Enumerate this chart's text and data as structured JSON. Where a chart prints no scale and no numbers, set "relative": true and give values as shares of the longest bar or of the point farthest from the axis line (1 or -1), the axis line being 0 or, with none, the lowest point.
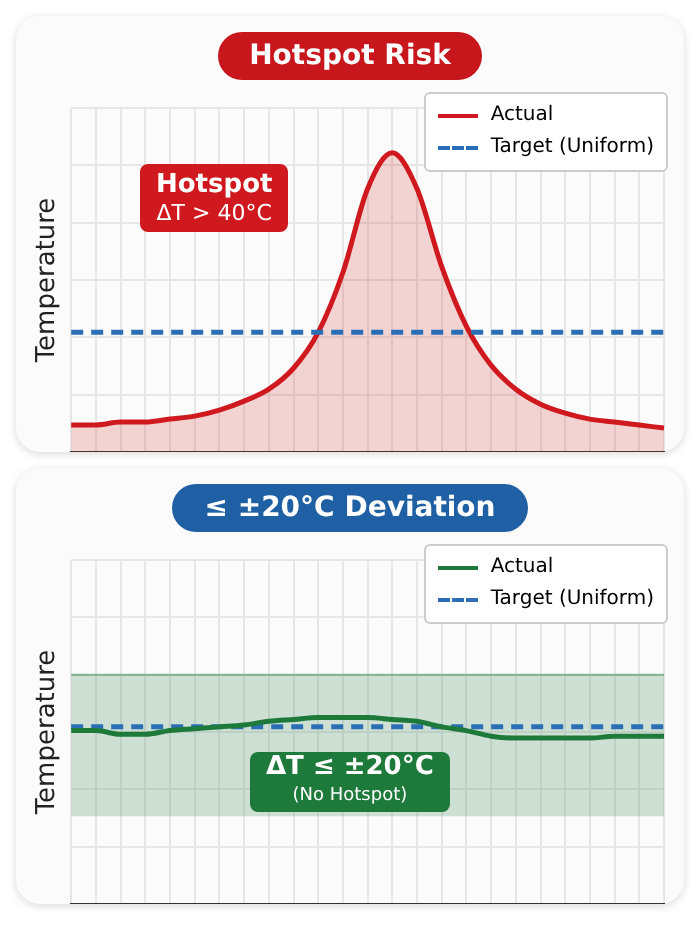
{
  "chart_data": [
    {
      "type": "line",
      "title": "Hotspot Risk",
      "ylabel": "Temperature",
      "relative": true,
      "legend": "top right",
      "grid": true,
      "categories": [
        null,
        null,
        null,
        null,
        null,
        null,
        null,
        null,
        null,
        null,
        null,
        null,
        null,
        null,
        null,
        null,
        null,
        null,
        null,
        null,
        null,
        null,
        null,
        null,
        null
      ],
      "series": [
        {
          "name": "Actual",
          "type": "area",
          "color": "#d0191e",
          "line_style": "solid",
          "values": [
            0.09,
            0.09,
            0.1,
            0.1,
            0.11,
            0.12,
            0.14,
            0.17,
            0.21,
            0.28,
            0.4,
            0.6,
            0.88,
            1.0,
            0.88,
            0.62,
            0.42,
            0.29,
            0.21,
            0.16,
            0.13,
            0.11,
            0.1,
            0.09,
            0.08
          ]
        },
        {
          "name": "Target (Uniform)",
          "type": "line",
          "color": "#2a6fb5",
          "line_style": "dashed",
          "values": [
            0.4,
            0.4,
            0.4,
            0.4,
            0.4,
            0.4,
            0.4,
            0.4,
            0.4,
            0.4,
            0.4,
            0.4,
            0.4,
            0.4,
            0.4,
            0.4,
            0.4,
            0.4,
            0.4,
            0.4,
            0.4,
            0.4,
            0.4,
            0.4,
            0.4
          ]
        }
      ],
      "annotations": [
        "Hotspot",
        "ΔT > 40°C"
      ]
    },
    {
      "type": "line",
      "title": "≤ ±20°C Deviation",
      "ylabel": "Temperature",
      "relative": true,
      "legend": "top right",
      "grid": true,
      "categories": [
        null,
        null,
        null,
        null,
        null,
        null,
        null,
        null,
        null,
        null,
        null,
        null,
        null,
        null,
        null,
        null,
        null,
        null,
        null,
        null,
        null,
        null,
        null,
        null,
        null
      ],
      "series": [
        {
          "name": "Actual",
          "type": "line",
          "color": "#1e7a3a",
          "line_style": "solid",
          "values": [
            0.93,
            0.93,
            0.91,
            0.91,
            0.93,
            0.94,
            0.95,
            0.96,
            0.98,
            0.99,
            1,
            1,
            1,
            0.99,
            0.98,
            0.95,
            0.93,
            0.9,
            0.89,
            0.89,
            0.89,
            0.89,
            0.9,
            0.9,
            0.9
          ],
          "lower": [
            0.47,
            0.47,
            0.47,
            0.47,
            0.47,
            0.47,
            0.47,
            0.47,
            0.47,
            0.47,
            0.47,
            0.47,
            0.47,
            0.47,
            0.47,
            0.47,
            0.47,
            0.47,
            0.47,
            0.47,
            0.47,
            0.47,
            0.47,
            0.47,
            0.47
          ],
          "upper": [
            1.23,
            1.23,
            1.23,
            1.23,
            1.23,
            1.23,
            1.23,
            1.23,
            1.23,
            1.23,
            1.23,
            1.23,
            1.23,
            1.23,
            1.23,
            1.23,
            1.23,
            1.23,
            1.23,
            1.23,
            1.23,
            1.23,
            1.23,
            1.23,
            1.23
          ]
        },
        {
          "name": "Target (Uniform)",
          "type": "line",
          "color": "#2a6fb5",
          "line_style": "dashed",
          "values": [
            0.95,
            0.95,
            0.95,
            0.95,
            0.95,
            0.95,
            0.95,
            0.95,
            0.95,
            0.95,
            0.95,
            0.95,
            0.95,
            0.95,
            0.95,
            0.95,
            0.95,
            0.95,
            0.95,
            0.95,
            0.95,
            0.95,
            0.95,
            0.95,
            0.95
          ]
        }
      ],
      "annotations": [
        "ΔT ≤ ±20°C",
        "(No Hotspot)"
      ]
    }
  ]
}
